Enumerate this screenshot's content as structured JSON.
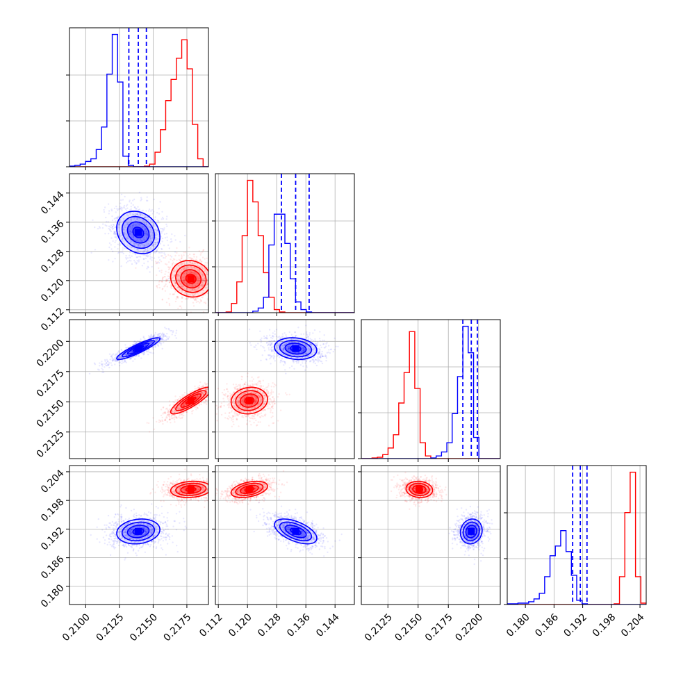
{
  "chart_data": {
    "type": "corner",
    "title": "",
    "params": [
      {
        "ticks": [
          0.21,
          0.2125,
          0.215,
          0.2175
        ],
        "tick_labels": [
          "0.2100",
          "0.2125",
          "0.2150",
          "0.2175"
        ],
        "range": [
          0.2088,
          0.2191
        ]
      },
      {
        "ticks": [
          0.112,
          0.12,
          0.128,
          0.136,
          0.144
        ],
        "tick_labels": [
          "0.112",
          "0.120",
          "0.128",
          "0.136",
          "0.144"
        ],
        "range": [
          0.1112,
          0.1493
        ]
      },
      {
        "ticks": [
          0.2125,
          0.215,
          0.2175,
          0.22
        ],
        "tick_labels": [
          "0.2125",
          "0.2150",
          "0.2175",
          "0.2200"
        ],
        "range": [
          0.2103,
          0.2218
        ]
      },
      {
        "ticks": [
          0.18,
          0.186,
          0.192,
          0.198,
          0.204
        ],
        "tick_labels": [
          "0.180",
          "0.186",
          "0.192",
          "0.198",
          "0.204"
        ],
        "range": [
          0.1762,
          0.2053
        ]
      }
    ],
    "grid": true,
    "series": [
      {
        "color": "#ff0000",
        "means": [
          0.2178,
          0.1205,
          0.2151,
          0.2003
        ],
        "sigmas": [
          0.00075,
          0.0025,
          0.00055,
          0.00085
        ],
        "correlations": {
          "1-0": -0.1,
          "2-0": 0.85,
          "2-1": 0.1,
          "3-0": 0.15,
          "3-1": 0.4,
          "3-2": -0.1
        },
        "hist_values": [
          [
            0.0,
            0.0,
            0.0,
            0.0,
            0.0,
            0.0,
            0.0,
            0.0,
            0.0,
            0.0,
            0.0,
            0.0,
            0.0,
            0.0,
            0.005,
            0.02,
            0.11,
            0.28,
            0.5,
            0.66,
            0.82,
            0.96,
            0.74,
            0.32,
            0.06,
            0.0
          ],
          [
            0.0,
            0.0,
            0.005,
            0.06,
            0.2,
            0.5,
            0.86,
            0.72,
            0.5,
            0.26,
            0.1,
            0.02,
            0.005,
            0.0,
            0.0,
            0.0,
            0.0,
            0.0,
            0.0,
            0.0,
            0.0,
            0.0,
            0.0,
            0.0,
            0.0,
            0.0
          ],
          [
            0.0,
            0.0,
            0.005,
            0.01,
            0.03,
            0.08,
            0.18,
            0.42,
            0.65,
            0.96,
            0.53,
            0.12,
            0.02,
            0.0,
            0.0,
            0.0,
            0.0,
            0.0,
            0.0,
            0.0,
            0.0,
            0.0,
            0.0,
            0.0,
            0.0,
            0.0
          ],
          [
            0.0,
            0.0,
            0.0,
            0.0,
            0.0,
            0.0,
            0.0,
            0.0,
            0.0,
            0.0,
            0.0,
            0.0,
            0.0,
            0.0,
            0.0,
            0.0,
            0.0,
            0.0,
            0.0,
            0.0,
            0.005,
            0.2,
            0.66,
            0.95,
            0.2,
            0.01
          ]
        ]
      },
      {
        "color": "#0000ff",
        "means": [
          0.2139,
          0.1332,
          0.2194,
          0.1915
        ],
        "sigmas": [
          0.0008,
          0.0029,
          0.00045,
          0.0013
        ],
        "correlations": {
          "1-0": -0.2,
          "2-0": 0.9,
          "2-1": -0.15,
          "3-0": 0.15,
          "3-1": -0.55,
          "3-2": 0.1
        },
        "quantile_lines": [
          [
            0.2132,
            0.2139,
            0.2145
          ],
          [
            0.1293,
            0.1332,
            0.1369
          ],
          [
            0.2187,
            0.2194,
            0.2199
          ],
          [
            0.1899,
            0.1915,
            0.1929
          ]
        ],
        "hist_values": [
          [
            0.005,
            0.01,
            0.02,
            0.04,
            0.06,
            0.13,
            0.3,
            0.7,
            1.0,
            0.64,
            0.08,
            0.01,
            0.0,
            0.0,
            0.0,
            0.0,
            0.0,
            0.0,
            0.0,
            0.0,
            0.0,
            0.0,
            0.0,
            0.0,
            0.0,
            0.0
          ],
          [
            0.0,
            0.0,
            0.0,
            0.0,
            0.0,
            0.0,
            0.0,
            0.01,
            0.03,
            0.1,
            0.44,
            0.64,
            0.64,
            0.45,
            0.22,
            0.07,
            0.02,
            0.005,
            0.0,
            0.0,
            0.0,
            0.0,
            0.0,
            0.0,
            0.0,
            0.0
          ],
          [
            0.0,
            0.0,
            0.0,
            0.0,
            0.0,
            0.0,
            0.0,
            0.0,
            0.0,
            0.0,
            0.0,
            0.0,
            0.0,
            0.005,
            0.02,
            0.05,
            0.12,
            0.34,
            0.62,
            1.0,
            0.8,
            0.16,
            0.0,
            0.0,
            0.0,
            0.0
          ],
          [
            0.005,
            0.005,
            0.01,
            0.01,
            0.02,
            0.04,
            0.08,
            0.2,
            0.35,
            0.42,
            0.53,
            0.38,
            0.21,
            0.03,
            0.005,
            0.0,
            0.0,
            0.0,
            0.0,
            0.0,
            0.0,
            0.0,
            0.0,
            0.0,
            0.0,
            0.0
          ]
        ]
      }
    ]
  }
}
